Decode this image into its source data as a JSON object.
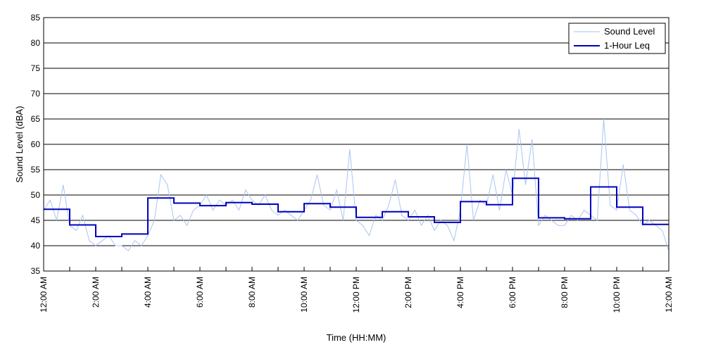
{
  "chart_data": {
    "type": "line",
    "title": "",
    "xlabel": "Time (HH:MM)",
    "ylabel": "Sound Level (dBA)",
    "ylim": [
      35,
      85
    ],
    "yticks": [
      35,
      40,
      45,
      50,
      55,
      60,
      65,
      70,
      75,
      80,
      85
    ],
    "xlim_hours": [
      0,
      24
    ],
    "xticks": [
      {
        "hour": 0,
        "label": "12:00 AM"
      },
      {
        "hour": 2,
        "label": "2:00 AM"
      },
      {
        "hour": 4,
        "label": "4:00 AM"
      },
      {
        "hour": 6,
        "label": "6:00 AM"
      },
      {
        "hour": 8,
        "label": "8:00 AM"
      },
      {
        "hour": 10,
        "label": "10:00 AM"
      },
      {
        "hour": 12,
        "label": "12:00 PM"
      },
      {
        "hour": 14,
        "label": "2:00 PM"
      },
      {
        "hour": 16,
        "label": "4:00 PM"
      },
      {
        "hour": 18,
        "label": "6:00 PM"
      },
      {
        "hour": 20,
        "label": "8:00 PM"
      },
      {
        "hour": 22,
        "label": "10:00 PM"
      },
      {
        "hour": 24,
        "label": "12:00 AM"
      }
    ],
    "grid": "horizontal",
    "legend_position": "top-right",
    "series": [
      {
        "name": "Sound Level",
        "color": "#a9c4f2",
        "x_hours": [
          0,
          0.25,
          0.5,
          0.75,
          1,
          1.25,
          1.5,
          1.75,
          2,
          2.25,
          2.5,
          2.75,
          3,
          3.25,
          3.5,
          3.75,
          4,
          4.25,
          4.5,
          4.75,
          5,
          5.25,
          5.5,
          5.75,
          6,
          6.25,
          6.5,
          6.75,
          7,
          7.25,
          7.5,
          7.75,
          8,
          8.25,
          8.5,
          8.75,
          9,
          9.25,
          9.5,
          9.75,
          10,
          10.25,
          10.5,
          10.75,
          11,
          11.25,
          11.5,
          11.75,
          12,
          12.25,
          12.5,
          12.75,
          13,
          13.25,
          13.5,
          13.75,
          14,
          14.25,
          14.5,
          14.75,
          15,
          15.25,
          15.5,
          15.75,
          16,
          16.25,
          16.5,
          16.75,
          17,
          17.25,
          17.5,
          17.75,
          18,
          18.25,
          18.5,
          18.75,
          19,
          19.25,
          19.5,
          19.75,
          20,
          20.25,
          20.5,
          20.75,
          21,
          21.25,
          21.5,
          21.75,
          22,
          22.25,
          22.5,
          22.75,
          23,
          23.25,
          23.5,
          23.75,
          24
        ],
        "values": [
          47,
          49,
          45,
          52,
          44,
          43,
          46,
          41,
          40,
          41,
          42,
          40,
          40,
          39,
          41,
          40,
          42,
          45,
          54,
          52,
          45,
          46,
          44,
          47,
          48,
          50,
          47,
          49,
          48,
          49,
          47,
          51,
          49,
          48,
          50,
          47,
          46,
          47,
          46,
          45,
          47,
          49,
          54,
          48,
          47,
          51,
          45,
          59,
          45,
          44,
          42,
          46,
          45,
          48,
          53,
          46,
          45,
          47,
          44,
          46,
          43,
          45,
          44,
          41,
          47,
          60,
          45,
          49,
          48,
          54,
          47,
          55,
          50,
          63,
          52,
          61,
          44,
          46,
          45,
          44,
          44,
          46,
          45,
          47,
          46,
          45,
          65,
          48,
          47,
          56,
          47,
          46,
          44,
          45,
          44,
          43,
          39
        ]
      },
      {
        "name": "1-Hour Leq",
        "color": "#0000c0",
        "hourly": [
          47.2,
          44.1,
          41.8,
          42.3,
          49.4,
          48.4,
          47.9,
          48.5,
          48.2,
          46.7,
          48.3,
          47.6,
          45.6,
          46.7,
          45.7,
          44.6,
          48.7,
          48.1,
          53.3,
          45.5,
          45.3,
          51.6,
          47.6,
          44.2
        ]
      }
    ]
  }
}
